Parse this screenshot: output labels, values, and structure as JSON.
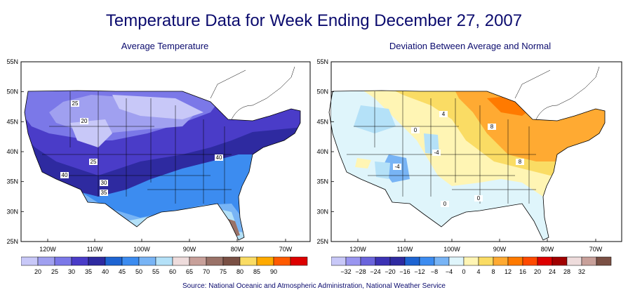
{
  "title": "Temperature Data for Week Ending December 27, 2007",
  "left_panel": {
    "title": "Average Temperature",
    "lat_labels": [
      "55N",
      "50N",
      "45N",
      "40N",
      "35N",
      "30N",
      "25N"
    ],
    "lon_labels": [
      "120W",
      "110W",
      "100W",
      "90W",
      "80W",
      "70W"
    ],
    "contour_labels": [
      "25",
      "20",
      "25",
      "30",
      "35",
      "40",
      "40"
    ],
    "legend": {
      "labels": [
        "20",
        "25",
        "30",
        "35",
        "40",
        "45",
        "50",
        "55",
        "60",
        "65",
        "70",
        "75",
        "80",
        "85",
        "90"
      ],
      "colors": [
        "#c8c8f8",
        "#a0a0f0",
        "#7b78e8",
        "#4a3cc8",
        "#2e2aa0",
        "#1e64d2",
        "#3c8cf0",
        "#78b4f5",
        "#b4e1f8",
        "#eedcdc",
        "#c8a09a",
        "#9a7268",
        "#7a5044",
        "#fadc64",
        "#ffaa00",
        "#ff5a00",
        "#dd0000"
      ]
    }
  },
  "right_panel": {
    "title": "Deviation Between Average and Normal",
    "lat_labels": [
      "55N",
      "50N",
      "45N",
      "40N",
      "35N",
      "30N",
      "25N"
    ],
    "lon_labels": [
      "120W",
      "110W",
      "100W",
      "90W",
      "80W",
      "70W"
    ],
    "contour_labels": [
      "4",
      "0",
      "0",
      "-4",
      "-4",
      "0",
      "8",
      "8"
    ],
    "legend": {
      "labels": [
        "−32",
        "−28",
        "−24",
        "−20",
        "−16",
        "−12",
        "−8",
        "−4",
        "0",
        "4",
        "8",
        "12",
        "16",
        "20",
        "24",
        "28",
        "32"
      ],
      "colors": [
        "#c8c8f8",
        "#9a96f0",
        "#6a64dc",
        "#3c32b4",
        "#2e2aa0",
        "#1e64d2",
        "#3c8cf0",
        "#78b4f5",
        "#dff5fb",
        "#fff5b4",
        "#fadc64",
        "#ffaa32",
        "#ff7a00",
        "#ff4a00",
        "#dd0000",
        "#a00000",
        "#eedcdc",
        "#c8a09a",
        "#7a5044"
      ]
    }
  },
  "source": "Source:  National Oceanic and Atmospheric Administration, National Weather Service"
}
